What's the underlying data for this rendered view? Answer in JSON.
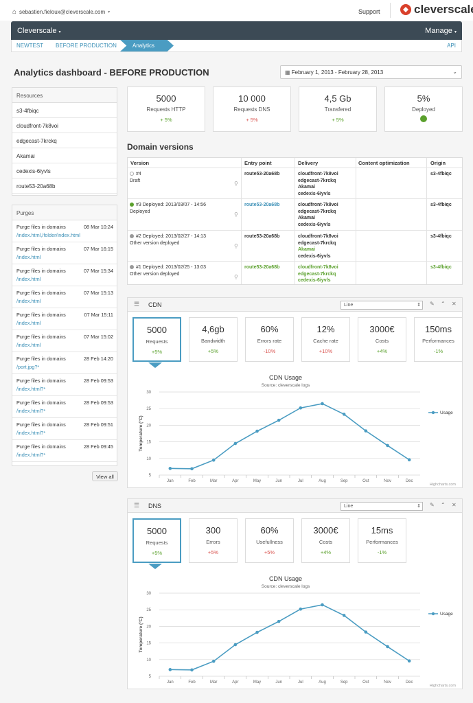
{
  "topbar": {
    "user_email": "sebastien.fieloux@cleverscale.com",
    "support_label": "Support",
    "logo_text": "cleverscale"
  },
  "nav": {
    "brand": "Cleverscale",
    "manage_label": "Manage",
    "breadcrumbs": [
      "NEWTEST",
      "BEFORE PRODUCTION",
      "Analytics"
    ],
    "api_label": "API"
  },
  "page": {
    "title": "Analytics dashboard - BEFORE PRODUCTION",
    "date_range": "February 1, 2013 - February 28, 2013"
  },
  "resources": {
    "title": "Resources",
    "items": [
      "s3-4fbiqc",
      "cloudfront-7k8voi",
      "edgecast-7krckq",
      "Akamai",
      "cedexis-6iyvls",
      "route53-20a68b"
    ]
  },
  "purges": {
    "title": "Purges",
    "items": [
      {
        "title": "Purge files in domains",
        "date": "08 Mar 10:24",
        "path": "/index.html,/folder/index.html"
      },
      {
        "title": "Purge files in domains",
        "date": "07 Mar 16:15",
        "path": "/index.html"
      },
      {
        "title": "Purge files in domains",
        "date": "07 Mar 15:34",
        "path": "/index.html"
      },
      {
        "title": "Purge files in domains",
        "date": "07 Mar 15:13",
        "path": "/index.html"
      },
      {
        "title": "Purge files in domains",
        "date": "07 Mar 15:11",
        "path": "/index.html"
      },
      {
        "title": "Purge files in domains",
        "date": "07 Mar 15:02",
        "path": "/index.html"
      },
      {
        "title": "Purge files in domains",
        "date": "28 Feb 14:20",
        "path": "/port.jpg?*"
      },
      {
        "title": "Purge files in domains",
        "date": "28 Feb 09:53",
        "path": "/index.html?*"
      },
      {
        "title": "Purge files in domains",
        "date": "28 Feb 09:53",
        "path": "/index.html?*"
      },
      {
        "title": "Purge files in domains",
        "date": "28 Feb 09:51",
        "path": "/index.html?*"
      },
      {
        "title": "Purge files in domains",
        "date": "28 Feb 09:45",
        "path": "/index.html?*"
      }
    ],
    "view_all": "View all"
  },
  "stats": [
    {
      "value": "5000",
      "label": "Requests HTTP",
      "change": "+ 5%",
      "tone": "green"
    },
    {
      "value": "10 000",
      "label": "Requests DNS",
      "change": "+ 5%",
      "tone": "red"
    },
    {
      "value": "4,5 Gb",
      "label": "Transfered",
      "change": "+ 5%",
      "tone": "green"
    },
    {
      "value": "5%",
      "label": "Deployed",
      "change": "",
      "tone": "green"
    }
  ],
  "domain_versions": {
    "title": "Domain versions",
    "headers": [
      "Version",
      "Entry point",
      "Delivery",
      "Content optimization",
      "Origin"
    ],
    "rows": [
      {
        "version": "#4",
        "status": "Draft",
        "entry": "route53-20a68b",
        "delivery": [
          "cloudfront-7k8voi",
          "edgecast-7krckq",
          "Akamai",
          "cedexis-6iyvls"
        ],
        "origin": "s3-4fbiqc"
      },
      {
        "version": "#3 Deployed: 2013/03/07 - 14:56",
        "status": "Deployed",
        "entry": "route53-20a68b",
        "delivery": [
          "cloudfront-7k8voi",
          "edgecast-7krckq",
          "Akamai",
          "cedexis-6iyvls"
        ],
        "origin": "s3-4fbiqc"
      },
      {
        "version": "#2 Deployed: 2013/02/27 - 14:13",
        "status": "Other version deployed",
        "entry": "route53-20a68b",
        "delivery": [
          "cloudfront-7k8voi",
          "edgecast-7krckq",
          "Akamai",
          "cedexis-6iyvls"
        ],
        "origin": "s3-4fbiqc"
      },
      {
        "version": "#1 Deployed: 2013/02/25 - 13:03",
        "status": "Other version deployed",
        "entry": "route53-20a68b",
        "delivery": [
          "cloudfront-7k8voi",
          "edgecast-7krckq",
          "cedexis-6iyvls"
        ],
        "origin": "s3-4fbiqc"
      }
    ]
  },
  "cdn_widget": {
    "title": "CDN",
    "select_value": "Line",
    "kpis": [
      {
        "value": "5000",
        "label": "Requests",
        "change": "+5%",
        "tone": "green"
      },
      {
        "value": "4,6gb",
        "label": "Bandwidth",
        "change": "+5%",
        "tone": "green"
      },
      {
        "value": "60%",
        "label": "Errors rate",
        "change": "-10%",
        "tone": "red"
      },
      {
        "value": "12%",
        "label": "Cache rate",
        "change": "+10%",
        "tone": "red"
      },
      {
        "value": "3000€",
        "label": "Costs",
        "change": "+4%",
        "tone": "green"
      },
      {
        "value": "150ms",
        "label": "Performances",
        "change": "-1%",
        "tone": "green"
      }
    ]
  },
  "dns_widget": {
    "title": "DNS",
    "select_value": "Line",
    "kpis": [
      {
        "value": "5000",
        "label": "Requests",
        "change": "+5%",
        "tone": "green"
      },
      {
        "value": "300",
        "label": "Errors",
        "change": "+5%",
        "tone": "red"
      },
      {
        "value": "60%",
        "label": "Usefullness",
        "change": "+5%",
        "tone": "red"
      },
      {
        "value": "3000€",
        "label": "Costs",
        "change": "+4%",
        "tone": "green"
      },
      {
        "value": "15ms",
        "label": "Performances",
        "change": "-1%",
        "tone": "green"
      }
    ]
  },
  "chart_data": [
    {
      "type": "line",
      "title": "CDN Usage",
      "subtitle": "Source: cleverscale logs",
      "ylabel": "Temperature (°C)",
      "categories": [
        "Jan",
        "Feb",
        "Mar",
        "Apr",
        "May",
        "Jun",
        "Jul",
        "Aug",
        "Sep",
        "Oct",
        "Nov",
        "Dec"
      ],
      "series": [
        {
          "name": "Usage",
          "values": [
            7.0,
            6.9,
            9.5,
            14.5,
            18.2,
            21.5,
            25.2,
            26.5,
            23.3,
            18.3,
            13.9,
            9.6
          ]
        }
      ],
      "ylim": [
        5,
        30
      ],
      "yticks": [
        5,
        10,
        15,
        20,
        25,
        30
      ],
      "credit": "Highcharts.com",
      "legend": "right",
      "color": "#4a9cc2"
    },
    {
      "type": "line",
      "title": "CDN Usage",
      "subtitle": "Source: cleverscale logs",
      "ylabel": "Temperature (°C)",
      "categories": [
        "Jan",
        "Feb",
        "Mar",
        "Apr",
        "May",
        "Jun",
        "Jul",
        "Aug",
        "Sep",
        "Oct",
        "Nov",
        "Dec"
      ],
      "series": [
        {
          "name": "Usage",
          "values": [
            7.0,
            6.9,
            9.5,
            14.5,
            18.2,
            21.5,
            25.2,
            26.5,
            23.3,
            18.3,
            13.9,
            9.6
          ]
        }
      ],
      "ylim": [
        5,
        30
      ],
      "yticks": [
        5,
        10,
        15,
        20,
        25,
        30
      ],
      "credit": "Highcharts.com",
      "legend": "right",
      "color": "#4a9cc2"
    }
  ]
}
